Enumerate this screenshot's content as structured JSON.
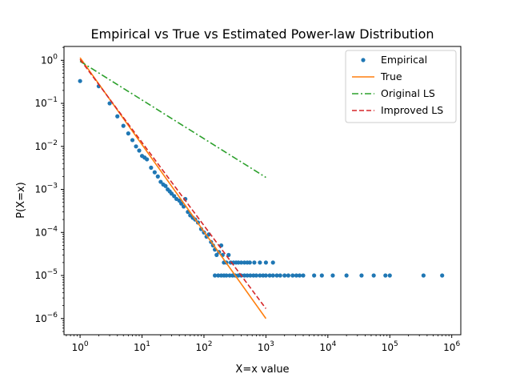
{
  "chart_data": {
    "type": "scatter",
    "title": "Empirical vs True vs Estimated Power-law Distribution",
    "xlabel": "X=x value",
    "ylabel": "P(X=x)",
    "x_scale": "log",
    "y_scale": "log",
    "xlim": [
      0.55,
      1400000
    ],
    "ylim": [
      4.2e-07,
      2.1
    ],
    "grid": false,
    "legend_position": "top-right",
    "x_ticks": [
      {
        "value": 1,
        "base": "10",
        "exp": "0"
      },
      {
        "value": 10,
        "base": "10",
        "exp": "1"
      },
      {
        "value": 100,
        "base": "10",
        "exp": "2"
      },
      {
        "value": 1000,
        "base": "10",
        "exp": "3"
      },
      {
        "value": 10000,
        "base": "10",
        "exp": "4"
      },
      {
        "value": 100000,
        "base": "10",
        "exp": "5"
      },
      {
        "value": 1000000,
        "base": "10",
        "exp": "6"
      }
    ],
    "y_ticks": [
      {
        "value": 1e-06,
        "base": "10",
        "exp": "−6"
      },
      {
        "value": 1e-05,
        "base": "10",
        "exp": "−5"
      },
      {
        "value": 0.0001,
        "base": "10",
        "exp": "−4"
      },
      {
        "value": 0.001,
        "base": "10",
        "exp": "−3"
      },
      {
        "value": 0.01,
        "base": "10",
        "exp": "−2"
      },
      {
        "value": 0.1,
        "base": "10",
        "exp": "−1"
      },
      {
        "value": 1,
        "base": "10",
        "exp": "0"
      }
    ],
    "series": [
      {
        "name": "Empirical",
        "kind": "points",
        "color": "#1f77b4",
        "points": [
          [
            1,
            0.33
          ],
          [
            2,
            0.25
          ],
          [
            3,
            0.1
          ],
          [
            4,
            0.05
          ],
          [
            5,
            0.03
          ],
          [
            6,
            0.02
          ],
          [
            7,
            0.014
          ],
          [
            8,
            0.01
          ],
          [
            9,
            0.008
          ],
          [
            10,
            0.006
          ],
          [
            11,
            0.0055
          ],
          [
            12,
            0.005
          ],
          [
            14,
            0.0032
          ],
          [
            16,
            0.0025
          ],
          [
            18,
            0.002
          ],
          [
            20,
            0.0015
          ],
          [
            22,
            0.0013
          ],
          [
            24,
            0.0012
          ],
          [
            26,
            0.001
          ],
          [
            28,
            0.0009
          ],
          [
            30,
            0.0008
          ],
          [
            33,
            0.0007
          ],
          [
            36,
            0.0006
          ],
          [
            40,
            0.00055
          ],
          [
            43,
            0.00047
          ],
          [
            47,
            0.0004
          ],
          [
            50,
            0.0006
          ],
          [
            55,
            0.0003
          ],
          [
            60,
            0.00025
          ],
          [
            66,
            0.00022
          ],
          [
            72,
            0.0002
          ],
          [
            80,
            0.00017
          ],
          [
            90,
            0.00012
          ],
          [
            100,
            0.0001
          ],
          [
            110,
            8e-05
          ],
          [
            120,
            9e-05
          ],
          [
            130,
            6e-05
          ],
          [
            140,
            5e-05
          ],
          [
            150,
            4e-05
          ],
          [
            160,
            3e-05
          ],
          [
            175,
            3.5e-05
          ],
          [
            190,
            5e-05
          ],
          [
            200,
            3e-05
          ],
          [
            210,
            2e-05
          ],
          [
            230,
            2e-05
          ],
          [
            250,
            3e-05
          ],
          [
            270,
            2e-05
          ],
          [
            300,
            2e-05
          ],
          [
            330,
            2e-05
          ],
          [
            360,
            2e-05
          ],
          [
            400,
            2e-05
          ],
          [
            450,
            2e-05
          ],
          [
            500,
            2e-05
          ],
          [
            550,
            2e-05
          ],
          [
            650,
            2e-05
          ],
          [
            800,
            2e-05
          ],
          [
            1000,
            2e-05
          ],
          [
            1300,
            2e-05
          ],
          [
            150,
            1e-05
          ],
          [
            170,
            1e-05
          ],
          [
            190,
            1e-05
          ],
          [
            210,
            1e-05
          ],
          [
            230,
            1e-05
          ],
          [
            260,
            1e-05
          ],
          [
            290,
            1e-05
          ],
          [
            320,
            1e-05
          ],
          [
            360,
            1e-05
          ],
          [
            400,
            1e-05
          ],
          [
            450,
            1e-05
          ],
          [
            500,
            1e-05
          ],
          [
            560,
            1e-05
          ],
          [
            630,
            1e-05
          ],
          [
            700,
            1e-05
          ],
          [
            800,
            1e-05
          ],
          [
            900,
            1e-05
          ],
          [
            1000,
            1e-05
          ],
          [
            1150,
            1e-05
          ],
          [
            1300,
            1e-05
          ],
          [
            1500,
            1e-05
          ],
          [
            1700,
            1e-05
          ],
          [
            2000,
            1e-05
          ],
          [
            2300,
            1e-05
          ],
          [
            2700,
            1e-05
          ],
          [
            3100,
            1e-05
          ],
          [
            3500,
            1e-05
          ],
          [
            4000,
            1e-05
          ],
          [
            6000,
            1e-05
          ],
          [
            8000,
            1e-05
          ],
          [
            12000,
            1e-05
          ],
          [
            20000,
            1e-05
          ],
          [
            35000,
            1e-05
          ],
          [
            55000,
            1e-05
          ],
          [
            85000,
            1e-05
          ],
          [
            100000,
            1e-05
          ],
          [
            350000,
            1e-05
          ],
          [
            700000,
            1e-05
          ]
        ]
      },
      {
        "name": "True",
        "kind": "line",
        "color": "#ff7f0e",
        "dash": "solid",
        "points": [
          [
            1,
            1.15
          ],
          [
            1000,
            1e-06
          ]
        ]
      },
      {
        "name": "Original LS",
        "kind": "line",
        "color": "#2ca02c",
        "dash": "dashdot",
        "points": [
          [
            1,
            0.95
          ],
          [
            1000,
            0.0019
          ]
        ]
      },
      {
        "name": "Improved LS",
        "kind": "line",
        "color": "#d62728",
        "dash": "dashed",
        "points": [
          [
            1,
            1.05
          ],
          [
            1000,
            1.7e-06
          ]
        ]
      }
    ]
  }
}
